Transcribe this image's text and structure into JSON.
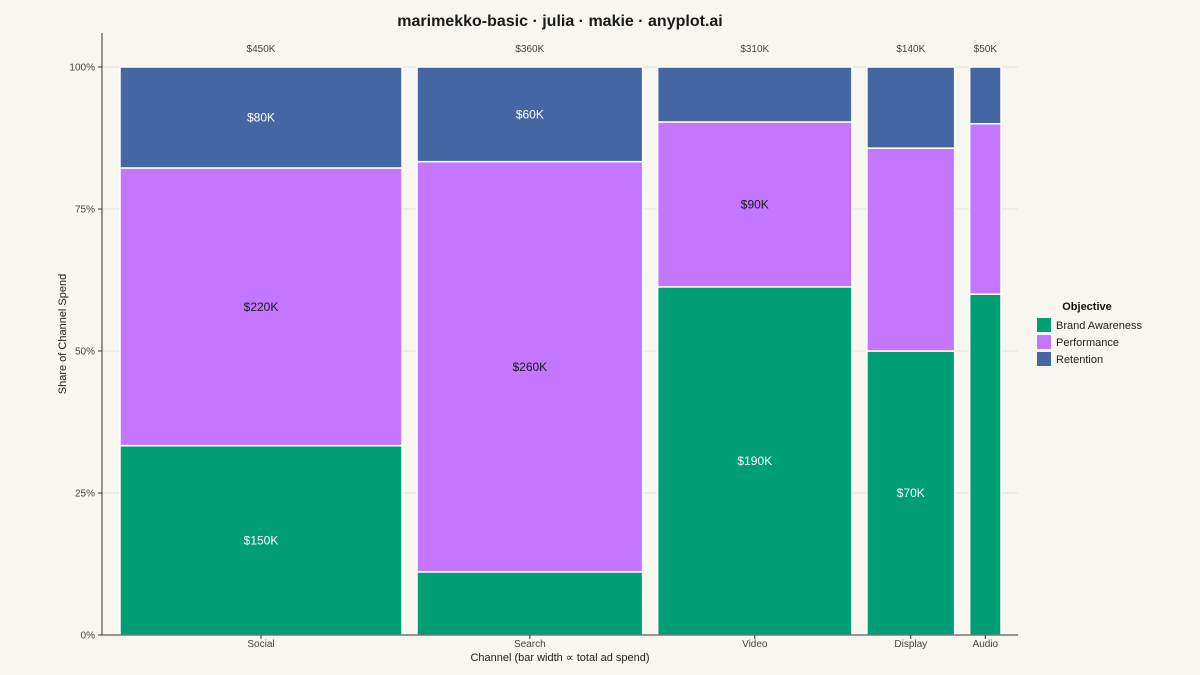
{
  "chart_data": {
    "type": "marimekko",
    "title": "marimekko-basic · julia · makie · anyplot.ai",
    "xlabel": "Channel  (bar width ∝ total ad spend)",
    "ylabel": "Share of Channel Spend",
    "ylim": [
      0,
      1
    ],
    "yticks": [
      {
        "value": 0,
        "label": "0%"
      },
      {
        "value": 0.25,
        "label": "25%"
      },
      {
        "value": 0.5,
        "label": "50%"
      },
      {
        "value": 0.75,
        "label": "75%"
      },
      {
        "value": 1,
        "label": "100%"
      }
    ],
    "grid": true,
    "categories": [
      "Social",
      "Search",
      "Video",
      "Display",
      "Audio"
    ],
    "totals": [
      450,
      360,
      310,
      140,
      50
    ],
    "total_labels": [
      "$450K",
      "$360K",
      "$310K",
      "$140K",
      "$50K"
    ],
    "series": [
      {
        "name": "Brand Awareness",
        "color": "#009e73",
        "text_color": "#ffffff",
        "values": [
          150,
          40,
          190,
          70,
          30
        ],
        "labels": [
          "$150K",
          "",
          "$190K",
          "$70K",
          ""
        ]
      },
      {
        "name": "Performance",
        "color": "#c476ff",
        "text_color": "#1a1a1a",
        "values": [
          220,
          260,
          90,
          50,
          15
        ],
        "labels": [
          "$220K",
          "$260K",
          "$90K",
          "",
          ""
        ]
      },
      {
        "name": "Retention",
        "color": "#4467a4",
        "text_color": "#ffffff",
        "values": [
          80,
          60,
          30,
          20,
          5
        ],
        "labels": [
          "$80K",
          "$60K",
          "",
          "",
          ""
        ]
      }
    ],
    "legend": {
      "title": "Objective",
      "position": "right"
    }
  }
}
